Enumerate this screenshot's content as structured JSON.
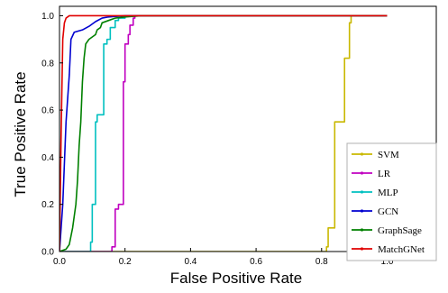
{
  "chart_data": {
    "type": "line",
    "xlabel": "False Positive Rate",
    "ylabel": "True Positive Rate",
    "xlim": [
      0,
      1.15
    ],
    "ylim": [
      0,
      1.04
    ],
    "x_ticks": [
      "0.0",
      "0.2",
      "0.4",
      "0.6",
      "0.8",
      "1.0"
    ],
    "y_ticks": [
      "0.0",
      "0.2",
      "0.4",
      "0.6",
      "0.8",
      "1.0"
    ],
    "legend_placement": "lower-right",
    "grid": false,
    "series": [
      {
        "name": "SVM",
        "color": "#c9b800",
        "points": [
          [
            0,
            0
          ],
          [
            0.815,
            0
          ],
          [
            0.815,
            0.02
          ],
          [
            0.82,
            0.02
          ],
          [
            0.82,
            0.1
          ],
          [
            0.84,
            0.1
          ],
          [
            0.84,
            0.55
          ],
          [
            0.87,
            0.55
          ],
          [
            0.87,
            0.82
          ],
          [
            0.885,
            0.82
          ],
          [
            0.885,
            0.97
          ],
          [
            0.89,
            0.97
          ],
          [
            0.89,
            1.0
          ],
          [
            1.0,
            1.0
          ]
        ]
      },
      {
        "name": "LR",
        "color": "#c000c0",
        "points": [
          [
            0,
            0
          ],
          [
            0.16,
            0
          ],
          [
            0.16,
            0.02
          ],
          [
            0.17,
            0.02
          ],
          [
            0.17,
            0.18
          ],
          [
            0.18,
            0.18
          ],
          [
            0.18,
            0.2
          ],
          [
            0.195,
            0.2
          ],
          [
            0.195,
            0.72
          ],
          [
            0.2,
            0.72
          ],
          [
            0.2,
            0.88
          ],
          [
            0.21,
            0.88
          ],
          [
            0.21,
            0.92
          ],
          [
            0.215,
            0.92
          ],
          [
            0.215,
            0.96
          ],
          [
            0.225,
            0.96
          ],
          [
            0.225,
            0.99
          ],
          [
            0.23,
            0.99
          ],
          [
            0.23,
            1.0
          ],
          [
            1.0,
            1.0
          ]
        ]
      },
      {
        "name": "MLP",
        "color": "#00c0c0",
        "points": [
          [
            0,
            0
          ],
          [
            0.095,
            0
          ],
          [
            0.095,
            0.04
          ],
          [
            0.1,
            0.04
          ],
          [
            0.1,
            0.2
          ],
          [
            0.11,
            0.2
          ],
          [
            0.11,
            0.55
          ],
          [
            0.115,
            0.55
          ],
          [
            0.115,
            0.58
          ],
          [
            0.135,
            0.58
          ],
          [
            0.135,
            0.88
          ],
          [
            0.145,
            0.88
          ],
          [
            0.145,
            0.9
          ],
          [
            0.155,
            0.9
          ],
          [
            0.155,
            0.95
          ],
          [
            0.17,
            0.95
          ],
          [
            0.17,
            0.98
          ],
          [
            0.18,
            0.98
          ],
          [
            0.18,
            0.99
          ],
          [
            0.2,
            0.99
          ],
          [
            0.2,
            1.0
          ],
          [
            1.0,
            1.0
          ]
        ]
      },
      {
        "name": "GCN",
        "color": "#0000d0",
        "points": [
          [
            0,
            0
          ],
          [
            0.01,
            0.2
          ],
          [
            0.02,
            0.55
          ],
          [
            0.03,
            0.75
          ],
          [
            0.035,
            0.9
          ],
          [
            0.045,
            0.93
          ],
          [
            0.07,
            0.94
          ],
          [
            0.09,
            0.955
          ],
          [
            0.11,
            0.975
          ],
          [
            0.13,
            0.99
          ],
          [
            0.15,
            0.995
          ],
          [
            0.2,
            1.0
          ],
          [
            1.0,
            1.0
          ]
        ]
      },
      {
        "name": "GraphSage",
        "color": "#008000",
        "points": [
          [
            0,
            0
          ],
          [
            0.02,
            0.01
          ],
          [
            0.03,
            0.03
          ],
          [
            0.04,
            0.1
          ],
          [
            0.05,
            0.2
          ],
          [
            0.055,
            0.3
          ],
          [
            0.06,
            0.45
          ],
          [
            0.065,
            0.55
          ],
          [
            0.07,
            0.72
          ],
          [
            0.075,
            0.82
          ],
          [
            0.08,
            0.88
          ],
          [
            0.09,
            0.9
          ],
          [
            0.1,
            0.91
          ],
          [
            0.11,
            0.92
          ],
          [
            0.115,
            0.94
          ],
          [
            0.125,
            0.95
          ],
          [
            0.13,
            0.97
          ],
          [
            0.15,
            0.98
          ],
          [
            0.17,
            0.99
          ],
          [
            0.2,
            0.995
          ],
          [
            0.25,
            1.0
          ],
          [
            1.0,
            1.0
          ]
        ]
      },
      {
        "name": "MatchGNet",
        "color": "#e00000",
        "points": [
          [
            0,
            0
          ],
          [
            0.005,
            0.5
          ],
          [
            0.01,
            0.9
          ],
          [
            0.015,
            0.97
          ],
          [
            0.02,
            0.99
          ],
          [
            0.03,
            1.0
          ],
          [
            1.0,
            1.0
          ]
        ]
      }
    ]
  }
}
